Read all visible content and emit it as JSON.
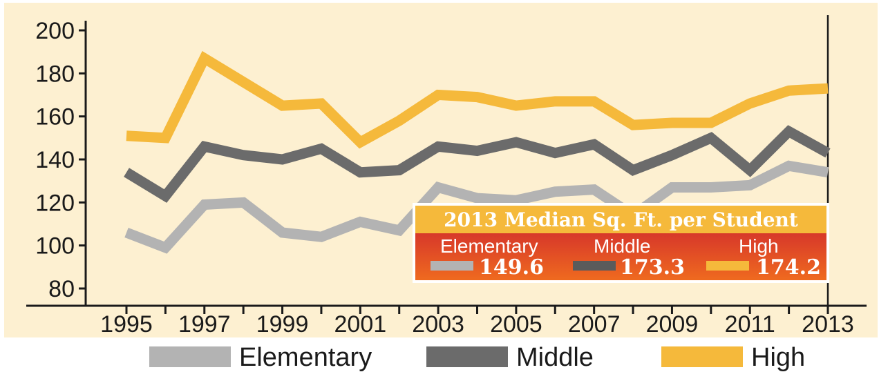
{
  "chart_data": {
    "type": "line",
    "x": [
      1995,
      1996,
      1997,
      1998,
      1999,
      2000,
      2001,
      2002,
      2003,
      2004,
      2005,
      2006,
      2007,
      2008,
      2009,
      2010,
      2011,
      2012,
      2013
    ],
    "x_tick_labels": [
      "1995",
      "1997",
      "1999",
      "2001",
      "2003",
      "2005",
      "2007",
      "2009",
      "2011",
      "2013"
    ],
    "y_tick_labels": [
      "80",
      "100",
      "120",
      "140",
      "160",
      "180",
      "200"
    ],
    "ylim": [
      80,
      200
    ],
    "xlim": [
      1994.5,
      2013.5
    ],
    "grid": false,
    "legend_position": "bottom",
    "series": [
      {
        "name": "Elementary",
        "color": "#b3b3b3",
        "values": [
          106,
          99,
          119,
          120,
          106,
          104,
          111,
          107,
          127,
          122,
          121,
          125,
          126,
          114,
          127,
          127,
          128,
          137,
          134
        ]
      },
      {
        "name": "Middle",
        "color": "#6b6b6b",
        "values": [
          134,
          123,
          146,
          142,
          140,
          145,
          134,
          135,
          146,
          144,
          148,
          143,
          147,
          135,
          142,
          150,
          135,
          153,
          143
        ]
      },
      {
        "name": "High",
        "color": "#f5b93b",
        "values": [
          151,
          150,
          187,
          176,
          165,
          166,
          148,
          158,
          170,
          169,
          165,
          167,
          167,
          156,
          157,
          157,
          166,
          172,
          173
        ]
      }
    ]
  },
  "inset": {
    "title": "2013 Median Sq. Ft. per Student",
    "items": [
      {
        "category": "Elementary",
        "value": "149.6",
        "color": "#b3b3b3"
      },
      {
        "category": "Middle",
        "value": "173.3",
        "color": "#5b5b5b"
      },
      {
        "category": "High",
        "value": "174.2",
        "color": "#f5b93b"
      }
    ]
  },
  "legend": {
    "items": [
      {
        "label": "Elementary",
        "color": "#b3b3b3"
      },
      {
        "label": "Middle",
        "color": "#6b6b6b"
      },
      {
        "label": "High",
        "color": "#f5b93b"
      }
    ]
  },
  "colors": {
    "plot_background": "#fdf0d1",
    "axis": "#1a1a1a",
    "inset_title_band": "#f5b93b",
    "inset_body_top": "#d7382a",
    "inset_body_bottom": "#ef6a1f"
  }
}
